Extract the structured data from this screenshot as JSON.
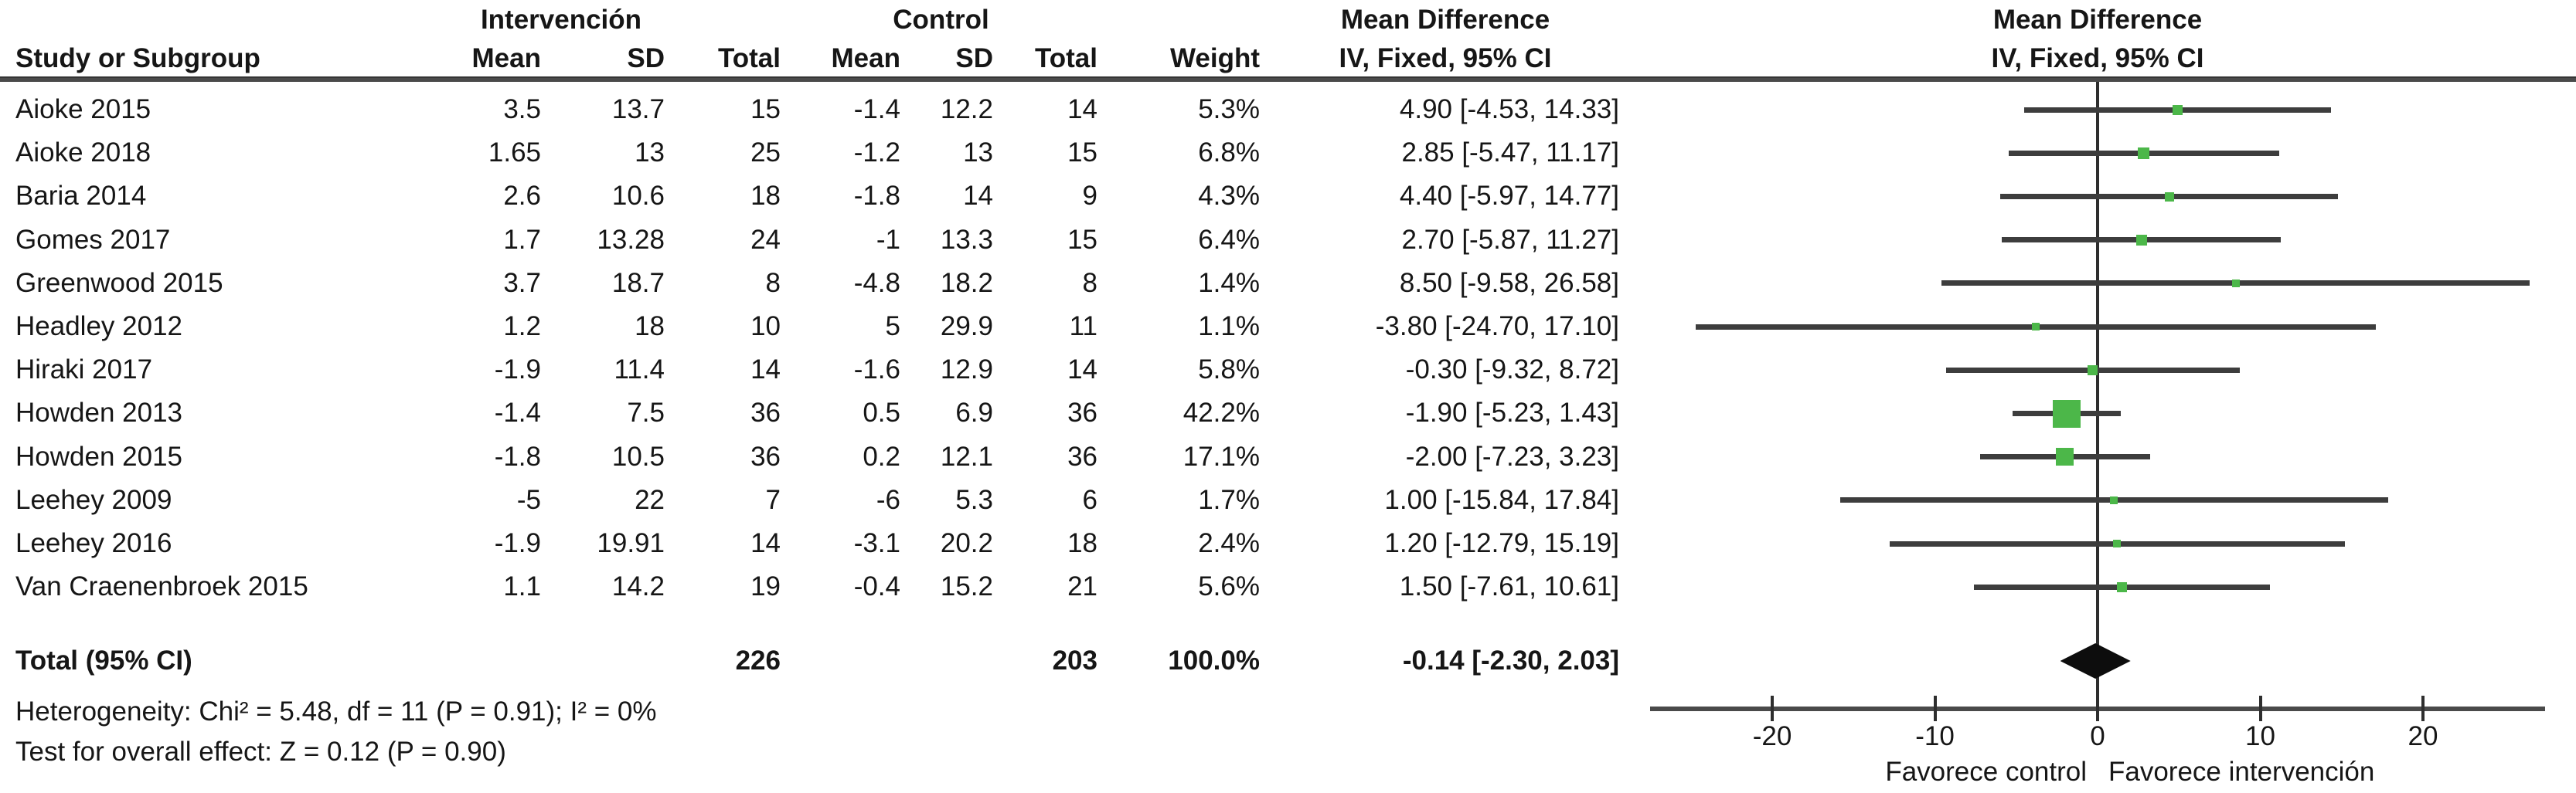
{
  "headers": {
    "intervention": "Intervención",
    "control": "Control",
    "study": "Study or Subgroup",
    "mean_int": "Mean",
    "sd_int": "SD",
    "total_int": "Total",
    "mean_ctrl": "Mean",
    "sd_ctrl": "SD",
    "total_ctrl": "Total",
    "weight": "Weight",
    "md_line1": "Mean Difference",
    "md_line2": "IV, Fixed, 95% CI"
  },
  "rows": [
    {
      "study": "Aioke 2015",
      "int_mean": "3.5",
      "int_sd": "13.7",
      "int_total": "15",
      "ctrl_mean": "-1.4",
      "ctrl_sd": "12.2",
      "ctrl_total": "14",
      "weight": "5.3%",
      "ci": "4.90 [-4.53, 14.33]"
    },
    {
      "study": "Aioke 2018",
      "int_mean": "1.65",
      "int_sd": "13",
      "int_total": "25",
      "ctrl_mean": "-1.2",
      "ctrl_sd": "13",
      "ctrl_total": "15",
      "weight": "6.8%",
      "ci": "2.85 [-5.47, 11.17]"
    },
    {
      "study": "Baria 2014",
      "int_mean": "2.6",
      "int_sd": "10.6",
      "int_total": "18",
      "ctrl_mean": "-1.8",
      "ctrl_sd": "14",
      "ctrl_total": "9",
      "weight": "4.3%",
      "ci": "4.40 [-5.97, 14.77]"
    },
    {
      "study": "Gomes 2017",
      "int_mean": "1.7",
      "int_sd": "13.28",
      "int_total": "24",
      "ctrl_mean": "-1",
      "ctrl_sd": "13.3",
      "ctrl_total": "15",
      "weight": "6.4%",
      "ci": "2.70 [-5.87, 11.27]"
    },
    {
      "study": "Greenwood 2015",
      "int_mean": "3.7",
      "int_sd": "18.7",
      "int_total": "8",
      "ctrl_mean": "-4.8",
      "ctrl_sd": "18.2",
      "ctrl_total": "8",
      "weight": "1.4%",
      "ci": "8.50 [-9.58, 26.58]"
    },
    {
      "study": "Headley 2012",
      "int_mean": "1.2",
      "int_sd": "18",
      "int_total": "10",
      "ctrl_mean": "5",
      "ctrl_sd": "29.9",
      "ctrl_total": "11",
      "weight": "1.1%",
      "ci": "-3.80 [-24.70, 17.10]"
    },
    {
      "study": "Hiraki 2017",
      "int_mean": "-1.9",
      "int_sd": "11.4",
      "int_total": "14",
      "ctrl_mean": "-1.6",
      "ctrl_sd": "12.9",
      "ctrl_total": "14",
      "weight": "5.8%",
      "ci": "-0.30 [-9.32, 8.72]"
    },
    {
      "study": "Howden 2013",
      "int_mean": "-1.4",
      "int_sd": "7.5",
      "int_total": "36",
      "ctrl_mean": "0.5",
      "ctrl_sd": "6.9",
      "ctrl_total": "36",
      "weight": "42.2%",
      "ci": "-1.90 [-5.23, 1.43]"
    },
    {
      "study": "Howden 2015",
      "int_mean": "-1.8",
      "int_sd": "10.5",
      "int_total": "36",
      "ctrl_mean": "0.2",
      "ctrl_sd": "12.1",
      "ctrl_total": "36",
      "weight": "17.1%",
      "ci": "-2.00 [-7.23, 3.23]"
    },
    {
      "study": "Leehey 2009",
      "int_mean": "-5",
      "int_sd": "22",
      "int_total": "7",
      "ctrl_mean": "-6",
      "ctrl_sd": "5.3",
      "ctrl_total": "6",
      "weight": "1.7%",
      "ci": "1.00 [-15.84, 17.84]"
    },
    {
      "study": "Leehey 2016",
      "int_mean": "-1.9",
      "int_sd": "19.91",
      "int_total": "14",
      "ctrl_mean": "-3.1",
      "ctrl_sd": "20.2",
      "ctrl_total": "18",
      "weight": "2.4%",
      "ci": "1.20 [-12.79, 15.19]"
    },
    {
      "study": "Van Craenenbroek 2015",
      "int_mean": "1.1",
      "int_sd": "14.2",
      "int_total": "19",
      "ctrl_mean": "-0.4",
      "ctrl_sd": "15.2",
      "ctrl_total": "21",
      "weight": "5.6%",
      "ci": "1.50 [-7.61, 10.61]"
    }
  ],
  "total_row": {
    "label": "Total (95% CI)",
    "int_total": "226",
    "ctrl_total": "203",
    "weight": "100.0%",
    "ci": "-0.14 [-2.30, 2.03]"
  },
  "footnotes": {
    "heterogeneity": "Heterogeneity: Chi² = 5.48, df = 11 (P = 0.91); I² = 0%",
    "overall_effect": "Test for overall effect: Z = 0.12 (P = 0.90)"
  },
  "chart_data": {
    "type": "forest",
    "effect_measure": "Mean Difference, IV, Fixed, 95% CI",
    "studies": [
      {
        "label": "Aioke 2015",
        "md": 4.9,
        "lo": -4.53,
        "hi": 14.33,
        "weight_pct": 5.3
      },
      {
        "label": "Aioke 2018",
        "md": 2.85,
        "lo": -5.47,
        "hi": 11.17,
        "weight_pct": 6.8
      },
      {
        "label": "Baria 2014",
        "md": 4.4,
        "lo": -5.97,
        "hi": 14.77,
        "weight_pct": 4.3
      },
      {
        "label": "Gomes 2017",
        "md": 2.7,
        "lo": -5.87,
        "hi": 11.27,
        "weight_pct": 6.4
      },
      {
        "label": "Greenwood 2015",
        "md": 8.5,
        "lo": -9.58,
        "hi": 26.58,
        "weight_pct": 1.4
      },
      {
        "label": "Headley 2012",
        "md": -3.8,
        "lo": -24.7,
        "hi": 17.1,
        "weight_pct": 1.1
      },
      {
        "label": "Hiraki 2017",
        "md": -0.3,
        "lo": -9.32,
        "hi": 8.72,
        "weight_pct": 5.8
      },
      {
        "label": "Howden 2013",
        "md": -1.9,
        "lo": -5.23,
        "hi": 1.43,
        "weight_pct": 42.2
      },
      {
        "label": "Howden 2015",
        "md": -2.0,
        "lo": -7.23,
        "hi": 3.23,
        "weight_pct": 17.1
      },
      {
        "label": "Leehey 2009",
        "md": 1.0,
        "lo": -15.84,
        "hi": 17.84,
        "weight_pct": 1.7
      },
      {
        "label": "Leehey 2016",
        "md": 1.2,
        "lo": -12.79,
        "hi": 15.19,
        "weight_pct": 2.4
      },
      {
        "label": "Van Craenenbroek 2015",
        "md": 1.5,
        "lo": -7.61,
        "hi": 10.61,
        "weight_pct": 5.6
      }
    ],
    "total": {
      "label": "Total (95% CI)",
      "md": -0.14,
      "lo": -2.3,
      "hi": 2.03,
      "weight_pct": 100.0
    },
    "axis": {
      "min": -27.5,
      "max": 27.5,
      "tick_values": [
        -20,
        -10,
        0,
        10,
        20
      ],
      "tick_labels": [
        "-20",
        "-10",
        "0",
        "10",
        "20"
      ],
      "zero_line": true
    },
    "favors_left": "Favorece control",
    "favors_right": "Favorece intervención",
    "colors": {
      "marker_green": "#4cb749",
      "ci_line": "#3d3d3d",
      "axis_gray": "#4a4a4a",
      "diamond_black": "#0d0d0d",
      "text": "#161616"
    }
  }
}
